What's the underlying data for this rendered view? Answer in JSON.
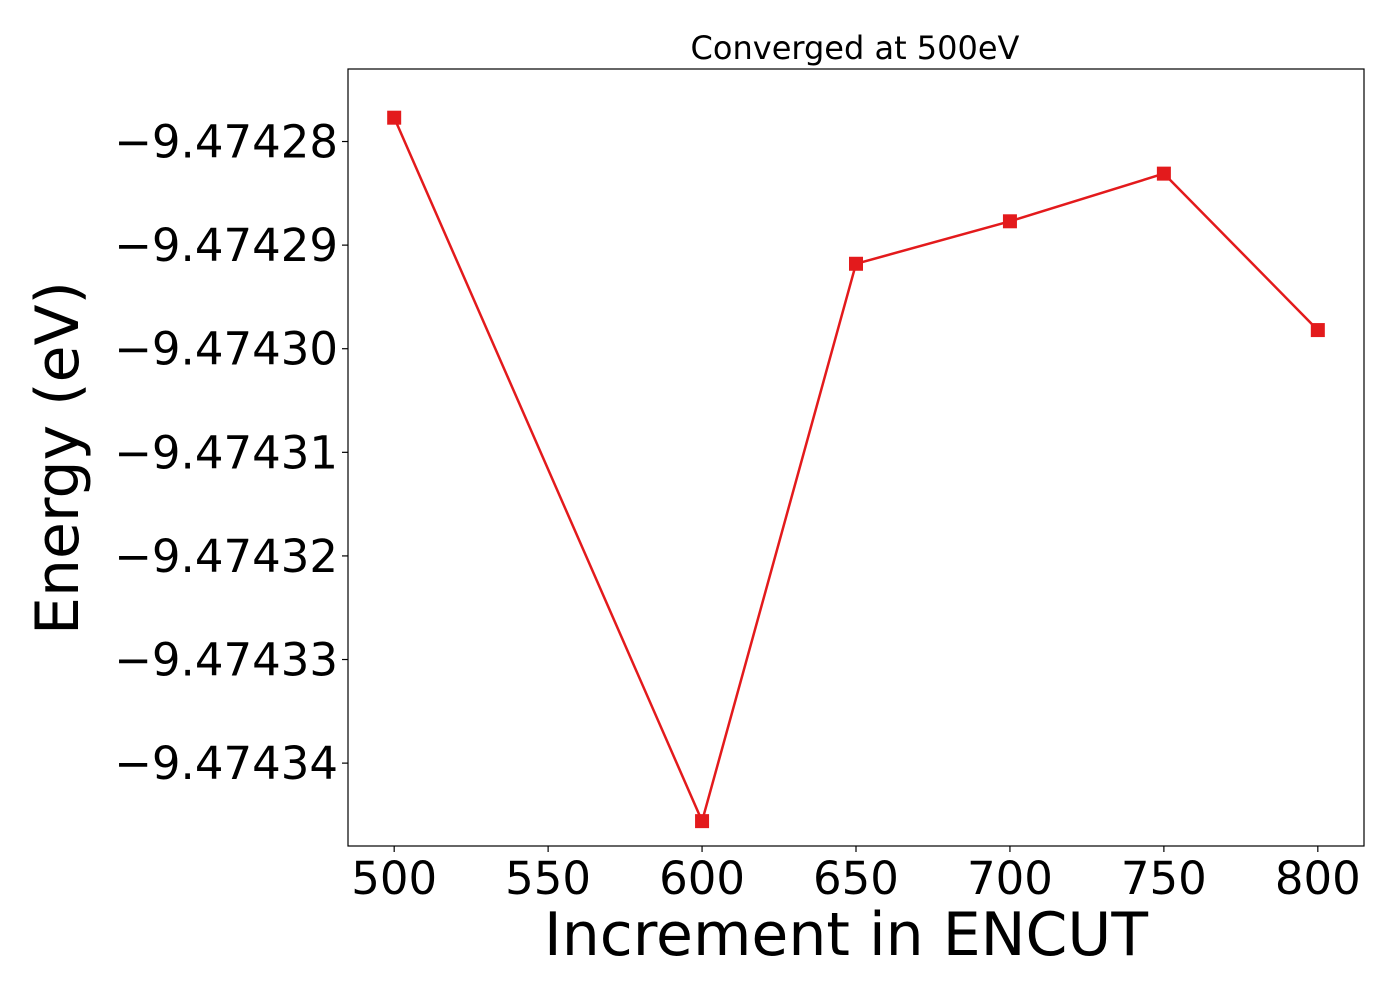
{
  "chart_data": {
    "type": "line",
    "title": "Converged at 500eV",
    "xlabel": "Increment in ENCUT",
    "ylabel": "Energy (eV)",
    "xlim": [
      485,
      815
    ],
    "ylim": [
      -9.474348,
      -9.474273
    ],
    "x_ticks": [
      500,
      550,
      600,
      650,
      700,
      750,
      800
    ],
    "x_tick_labels": [
      "500",
      "550",
      "600",
      "650",
      "700",
      "750",
      "800"
    ],
    "y_ticks": [
      -9.47428,
      -9.47429,
      -9.4743,
      -9.47431,
      -9.47432,
      -9.47433,
      -9.47434
    ],
    "y_tick_labels": [
      "−9.47428",
      "−9.47429",
      "−9.47430",
      "−9.47431",
      "−9.47432",
      "−9.47433",
      "−9.47434"
    ],
    "grid": false,
    "series": [
      {
        "x": [
          500,
          600,
          650,
          700,
          750,
          800
        ],
        "y": [
          -9.4742777,
          -9.4743456,
          -9.4742918,
          -9.4742877,
          -9.4742831,
          -9.4742982
        ],
        "color": "#e31a1c",
        "marker": "square"
      }
    ]
  }
}
